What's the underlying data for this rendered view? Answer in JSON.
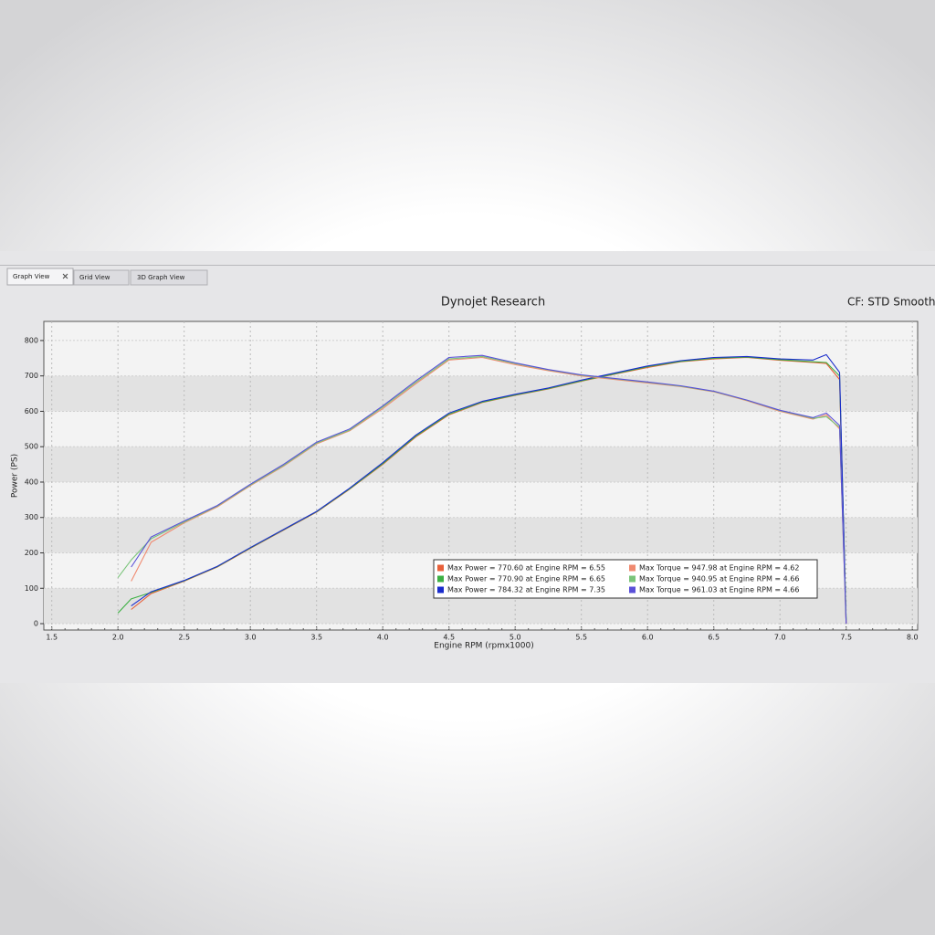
{
  "tabs": [
    "Graph View",
    "Grid View",
    "3D Graph View"
  ],
  "chart_data": {
    "type": "line",
    "title": "Dynojet Research",
    "annotation": "CF: STD Smoothing",
    "xlabel": "Engine RPM (rpmx1000)",
    "ylabel": "Power (PS)",
    "xlim": [
      1.44,
      8.04
    ],
    "ylim": [
      -18,
      854
    ],
    "xticks": [
      1.5,
      {
        "value": 2,
        "label": "2.0"
      },
      2.5,
      {
        "value": 3,
        "label": "3.0"
      },
      3.5,
      {
        "value": 4,
        "label": "4.0"
      },
      4.5,
      {
        "value": 5,
        "label": "5.0"
      },
      5.5,
      {
        "value": 6,
        "label": "6.0"
      },
      6.5,
      {
        "value": 7,
        "label": "7.0"
      },
      7.5,
      {
        "value": 8,
        "label": "8.0"
      }
    ],
    "yticks": [
      0,
      100,
      200,
      300,
      400,
      500,
      600,
      700,
      800
    ],
    "grid": true,
    "legend": "bottom-right",
    "x": [
      2.0,
      2.1,
      2.25,
      2.5,
      2.75,
      3.0,
      3.25,
      3.5,
      3.75,
      4.0,
      4.25,
      4.5,
      4.75,
      5.0,
      5.25,
      5.5,
      5.75,
      6.0,
      6.25,
      6.5,
      6.75,
      7.0,
      7.25,
      7.35,
      7.45,
      7.5
    ],
    "series": [
      {
        "name": "Max Power = 770.60 at Engine RPM = 6.55",
        "color": "#e8603a",
        "values": [
          null,
          40,
          85,
          120,
          160,
          213,
          264,
          315,
          380,
          450,
          528,
          590,
          625,
          645,
          663,
          685,
          705,
          724,
          740,
          748,
          752,
          744,
          738,
          735,
          690,
          0
        ]
      },
      {
        "name": "Max Power = 770.90 at Engine RPM = 6.65",
        "color": "#3cb043",
        "values": [
          30,
          70,
          88,
          121,
          161,
          214,
          265,
          316,
          381,
          452,
          530,
          592,
          626,
          646,
          664,
          686,
          706,
          726,
          741,
          750,
          753,
          746,
          740,
          738,
          700,
          10
        ]
      },
      {
        "name": "Max Power = 784.32 at Engine RPM = 7.35",
        "color": "#1a2ccc",
        "values": [
          null,
          50,
          90,
          122,
          162,
          215,
          266,
          317,
          383,
          455,
          533,
          595,
          628,
          648,
          666,
          688,
          708,
          728,
          743,
          752,
          755,
          748,
          745,
          760,
          710,
          0
        ]
      },
      {
        "name": "Max Torque = 947.98 at Engine RPM = 4.62",
        "color": "#f08a70",
        "values": [
          null,
          120,
          230,
          285,
          330,
          390,
          445,
          508,
          545,
          608,
          678,
          745,
          752,
          732,
          715,
          700,
          690,
          680,
          670,
          655,
          630,
          600,
          578,
          590,
          550,
          0
        ]
      },
      {
        "name": "Max Torque = 940.95 at Engine RPM = 4.66",
        "color": "#7ac47a",
        "values": [
          130,
          180,
          240,
          287,
          332,
          392,
          447,
          510,
          547,
          612,
          682,
          748,
          755,
          735,
          717,
          702,
          692,
          682,
          671,
          656,
          631,
          602,
          580,
          585,
          555,
          10
        ]
      },
      {
        "name": "Max Torque = 961.03 at Engine RPM = 4.66",
        "color": "#5a50d8",
        "values": [
          null,
          160,
          245,
          290,
          334,
          394,
          450,
          513,
          550,
          615,
          686,
          752,
          758,
          737,
          718,
          703,
          693,
          683,
          672,
          657,
          632,
          603,
          582,
          595,
          560,
          0
        ]
      }
    ]
  }
}
